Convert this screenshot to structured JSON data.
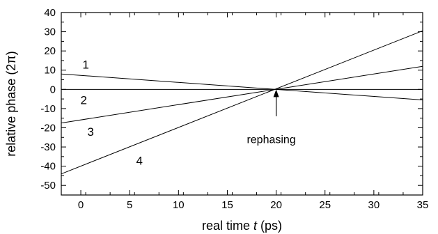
{
  "chart_data": {
    "type": "line",
    "title": "",
    "xlabel": {
      "prefix": "real time ",
      "var": "t",
      "suffix": " (ps)"
    },
    "ylabel": {
      "prefix": "relative phase (2",
      "var": "π",
      "suffix": ")"
    },
    "xlim": [
      -2,
      35
    ],
    "ylim": [
      -55,
      40
    ],
    "xticks": [
      0,
      5,
      10,
      15,
      20,
      25,
      30,
      35
    ],
    "yticks": [
      -50,
      -40,
      -30,
      -20,
      -10,
      0,
      10,
      20,
      30,
      40
    ],
    "grid": false,
    "series": [
      {
        "name": "1",
        "x": [
          -2,
          35
        ],
        "y": [
          8,
          -5.5
        ]
      },
      {
        "name": "2",
        "x": [
          -2,
          35
        ],
        "y": [
          0,
          0
        ]
      },
      {
        "name": "3",
        "x": [
          -2,
          35
        ],
        "y": [
          -17.5,
          12
        ]
      },
      {
        "name": "4",
        "x": [
          -2,
          35
        ],
        "y": [
          -44,
          30.5
        ]
      }
    ],
    "series_label_positions": [
      {
        "name": "1",
        "x": 0.5,
        "y": 13
      },
      {
        "name": "2",
        "x": 0.3,
        "y": -5.5
      },
      {
        "name": "3",
        "x": 1,
        "y": -22
      },
      {
        "name": "4",
        "x": 6,
        "y": -37
      }
    ],
    "annotations": [
      {
        "text": "rephasing",
        "arrow_tip": [
          20,
          0
        ],
        "arrow_tail": [
          20,
          -14
        ],
        "text_at": [
          19.5,
          -28
        ]
      }
    ]
  }
}
